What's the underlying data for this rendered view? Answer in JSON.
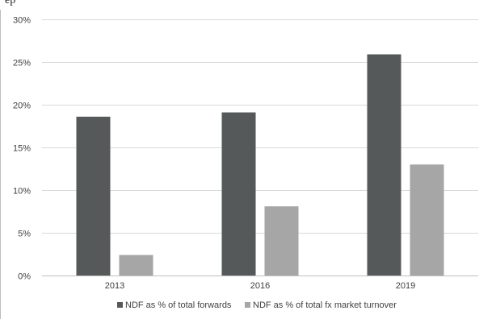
{
  "page": {
    "top_text": "ep"
  },
  "chart_data": {
    "type": "bar",
    "categories": [
      "2013",
      "2016",
      "2019"
    ],
    "series": [
      {
        "name": "NDF as % of total forwards",
        "color": "#555959",
        "values": [
          18.6,
          19.1,
          25.9
        ]
      },
      {
        "name": "NDF as % of total fx market turnover",
        "color": "#a6a6a6",
        "values": [
          2.4,
          8.1,
          13.0
        ]
      }
    ],
    "ylim": [
      0,
      30
    ],
    "yticks": [
      "0%",
      "5%",
      "10%",
      "15%",
      "20%",
      "25%",
      "30%"
    ],
    "grid": true,
    "legend_position": "bottom",
    "title": "",
    "xlabel": "",
    "ylabel": ""
  }
}
